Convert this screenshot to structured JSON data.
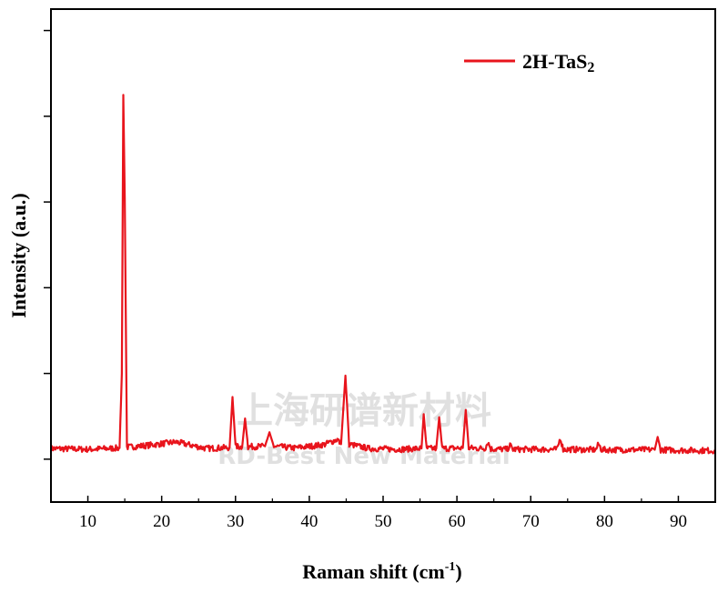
{
  "chart_data": {
    "type": "line",
    "title": "",
    "xlabel": "Raman shift (cm",
    "xlabel_sup": "-1",
    "xlabel_end": ")",
    "ylabel": "Intensity (a.u.)",
    "xlim": [
      5,
      95
    ],
    "ylim": [
      -10,
      105
    ],
    "x_ticks": [
      10,
      20,
      30,
      40,
      50,
      60,
      70,
      80,
      90
    ],
    "y_ticks": [
      0,
      20,
      40,
      60,
      80,
      100
    ],
    "y_ticks_labeled": false,
    "grid": false,
    "legend_position": "top-right",
    "series": [
      {
        "name": "2H-TaS",
        "name_sub": "2",
        "color": "#e8141c",
        "x": [
          5,
          10,
          14.3,
          14.6,
          14.8,
          15.0,
          15.3,
          18,
          22,
          26,
          29.2,
          29.6,
          30.0,
          30.9,
          31.3,
          31.7,
          34.0,
          34.6,
          35.2,
          38,
          42,
          43.8,
          44.3,
          44.9,
          45.4,
          48,
          52,
          55.2,
          55.5,
          55.9,
          57.2,
          57.6,
          58.0,
          60.8,
          61.2,
          61.6,
          63.8,
          64.2,
          64.6,
          66.8,
          67.2,
          67.6,
          73.6,
          74.0,
          74.4,
          78.8,
          79.2,
          79.6,
          86.8,
          87.2,
          87.6,
          90,
          95
        ],
        "y": [
          2.5,
          2.3,
          2.6,
          20,
          85,
          61,
          2.8,
          3.2,
          4.0,
          2.5,
          2.7,
          14.5,
          3.0,
          2.8,
          9.5,
          2.9,
          3.0,
          6.3,
          3.0,
          2.6,
          3.4,
          4.6,
          3.5,
          19.5,
          3.5,
          2.5,
          2.3,
          2.5,
          10.5,
          2.5,
          2.5,
          9.8,
          2.5,
          2.6,
          11.5,
          2.6,
          2.5,
          4.0,
          2.4,
          2.3,
          3.2,
          2.3,
          2.3,
          5.0,
          2.3,
          2.2,
          3.5,
          2.2,
          2.2,
          5.2,
          2.2,
          2.1,
          2.0
        ]
      }
    ]
  },
  "watermark": {
    "line1": "上海研谱新材料",
    "line2": "RD-Best New Material"
  }
}
